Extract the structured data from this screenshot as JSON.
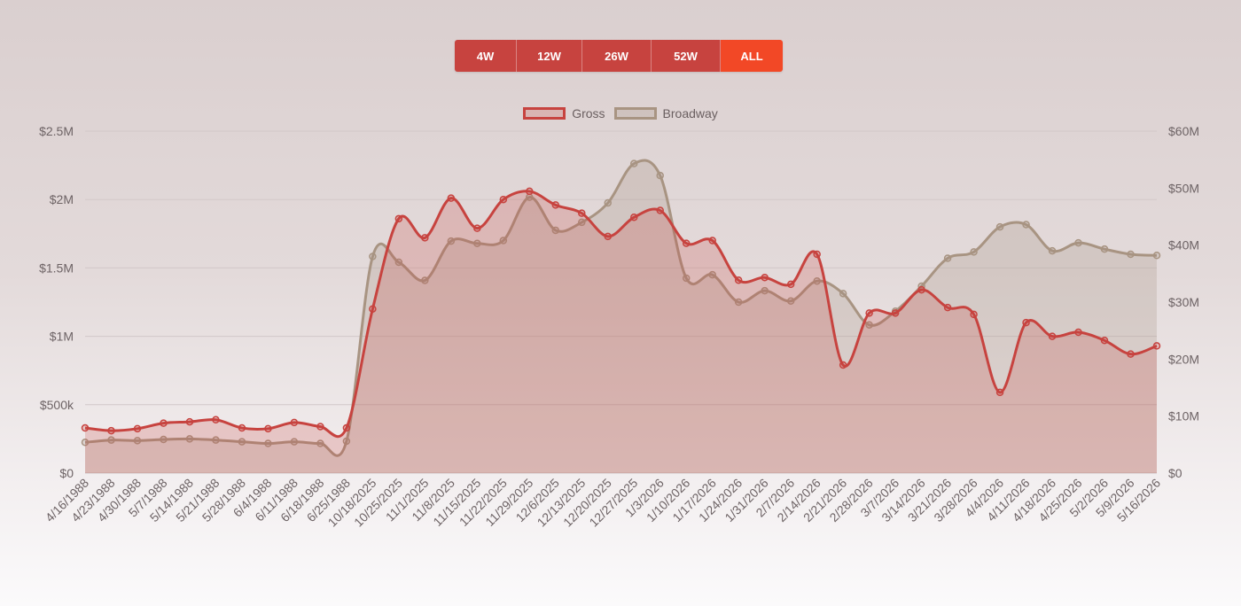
{
  "range_selector": {
    "buttons": [
      {
        "label": "4W",
        "active": false
      },
      {
        "label": "12W",
        "active": false
      },
      {
        "label": "26W",
        "active": false
      },
      {
        "label": "52W",
        "active": false
      },
      {
        "label": "ALL",
        "active": true
      }
    ],
    "color": "#c7433f",
    "active_color": "#f24826"
  },
  "chart_data": {
    "type": "line",
    "title": "",
    "xlabel": "",
    "ylabel": "",
    "grid": true,
    "legend_position": "top-center",
    "categories": [
      "4/16/1988",
      "4/23/1988",
      "4/30/1988",
      "5/7/1988",
      "5/14/1988",
      "5/21/1988",
      "5/28/1988",
      "6/4/1988",
      "6/11/1988",
      "6/18/1988",
      "6/25/1988",
      "10/18/2025",
      "10/25/2025",
      "11/1/2025",
      "11/8/2025",
      "11/15/2025",
      "11/22/2025",
      "11/29/2025",
      "12/6/2025",
      "12/13/2025",
      "12/20/2025",
      "12/27/2025",
      "1/3/2026",
      "1/10/2026",
      "1/17/2026",
      "1/24/2026",
      "1/31/2026",
      "2/7/2026",
      "2/14/2026",
      "2/21/2026",
      "2/28/2026",
      "3/7/2026",
      "3/14/2026",
      "3/21/2026",
      "3/28/2026",
      "4/4/2026",
      "4/11/2026",
      "4/18/2026",
      "4/25/2026",
      "5/2/2026",
      "5/9/2026",
      "5/16/2026"
    ],
    "y_left": {
      "ylim": [
        0,
        2500000
      ],
      "ticks": [
        0,
        500000,
        1000000,
        1500000,
        2000000,
        2500000
      ],
      "tick_labels": [
        "$0",
        "$500k",
        "$1M",
        "$1.5M",
        "$2M",
        "$2.5M"
      ]
    },
    "y_right": {
      "ylim": [
        0,
        60000000
      ],
      "ticks": [
        0,
        10000000,
        20000000,
        30000000,
        40000000,
        50000000,
        60000000
      ],
      "tick_labels": [
        "$0",
        "$10M",
        "$20M",
        "$30M",
        "$40M",
        "$50M",
        "$60M"
      ]
    },
    "series": [
      {
        "name": "Gross",
        "axis": "left",
        "color": "#c7433f",
        "fill": "rgba(199,67,63,0.22)",
        "values": [
          330000,
          310000,
          325000,
          365000,
          375000,
          390000,
          330000,
          325000,
          370000,
          340000,
          330000,
          1200000,
          1860000,
          1720000,
          2010000,
          1790000,
          2000000,
          2060000,
          1960000,
          1900000,
          1730000,
          1870000,
          1920000,
          1680000,
          1700000,
          1410000,
          1430000,
          1380000,
          1600000,
          790000,
          1170000,
          1170000,
          1340000,
          1210000,
          1160000,
          590000,
          1100000,
          1000000,
          1030000,
          970000,
          870000,
          930000
        ]
      },
      {
        "name": "Broadway",
        "axis": "right",
        "color": "#a89482",
        "fill": "rgba(168,148,130,0.26)",
        "values": [
          5400000,
          5800000,
          5700000,
          5900000,
          6000000,
          5800000,
          5500000,
          5200000,
          5500000,
          5200000,
          5600000,
          38000000,
          37000000,
          33800000,
          40700000,
          40300000,
          40800000,
          48400000,
          42600000,
          44000000,
          47400000,
          54300000,
          52200000,
          34200000,
          34800000,
          30000000,
          32000000,
          30200000,
          33700000,
          31500000,
          26000000,
          28400000,
          32800000,
          37700000,
          38800000,
          43200000,
          43600000,
          39000000,
          40400000,
          39300000,
          38400000,
          38200000
        ]
      }
    ]
  }
}
